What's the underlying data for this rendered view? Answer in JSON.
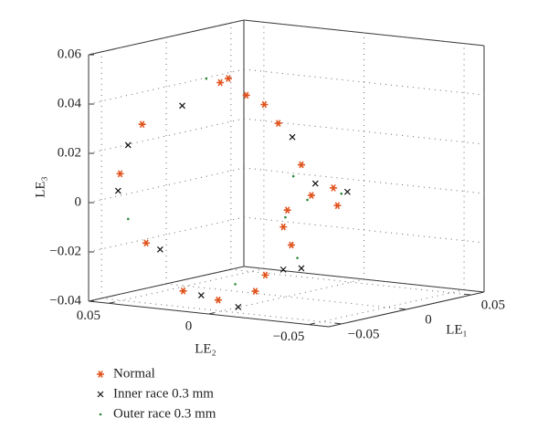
{
  "chart_data": {
    "type": "scatter3d",
    "xlabel": "LE₁",
    "ylabel": "LE₂",
    "zlabel": "LE₃",
    "xlim": [
      -0.06,
      0.06
    ],
    "ylim": [
      -0.06,
      0.06
    ],
    "zlim": [
      -0.04,
      0.06
    ],
    "xticks": [
      {
        "value": -0.05,
        "label": "−0.05"
      },
      0,
      0.05
    ],
    "yticks": [
      {
        "value": -0.05,
        "label": "−0.05"
      },
      0,
      0.05
    ],
    "zticks": [
      {
        "value": -0.04,
        "label": "−0.04"
      },
      {
        "value": -0.02,
        "label": "−0.02"
      },
      0,
      0.02,
      0.04,
      0.06
    ],
    "grid": true,
    "legend": "bottom-left",
    "series": [
      {
        "name": "Normal",
        "color": "#e0521c",
        "marker": "asterisk",
        "x": [
          -0.048,
          -0.048,
          -0.048,
          0,
          0,
          0,
          0,
          0,
          0.024,
          0.024,
          0.024,
          0.024,
          0.024,
          0.024,
          -0.024,
          -0.048,
          -0.024,
          -0.024,
          0.024
        ],
        "y": [
          0.041,
          0.052,
          0.039,
          0.033,
          0.029,
          0.02,
          0.011,
          0.004,
          0.008,
          -0.008,
          -0.01,
          0.015,
          0.017,
          0.013,
          0.036,
          0.003,
          -0.005,
          0.0,
          0.003
        ],
        "z": [
          0.032,
          0.011,
          -0.016,
          0.044,
          0.046,
          0.04,
          0.037,
          0.03,
          0.01,
          0.002,
          -0.005,
          -0.009,
          -0.016,
          -0.023,
          -0.038,
          -0.036,
          -0.028,
          -0.035,
          -0.002
        ]
      },
      {
        "name": "Inner race 0.3 mm",
        "color": "#111111",
        "marker": "cross",
        "x": [
          -0.048,
          -0.048,
          -0.048,
          0,
          0,
          0.024,
          0.024,
          0.024,
          -0.024,
          -0.048,
          -0.024
        ],
        "y": [
          0.048,
          0.053,
          0.032,
          0.052,
          -0.003,
          0.001,
          -0.015,
          0.008,
          0.027,
          -0.007,
          -0.014
        ],
        "z": [
          0.023,
          0.004,
          -0.018,
          0.033,
          0.025,
          0.003,
          0.001,
          -0.032,
          -0.039,
          -0.038,
          -0.025
        ]
      },
      {
        "name": "Outer race 0.3 mm",
        "color": "#2a8a3a",
        "marker": "dot",
        "x": [
          -0.048,
          0,
          0.024,
          0.024,
          0.024,
          0.024,
          -0.024,
          0.024
        ],
        "y": [
          0.048,
          0.04,
          0.012,
          -0.012,
          0.016,
          0.01,
          0.01,
          0.005
        ],
        "z": [
          -0.007,
          0.045,
          0.005,
          0.0,
          -0.012,
          -0.028,
          -0.033,
          -0.004
        ]
      }
    ]
  }
}
